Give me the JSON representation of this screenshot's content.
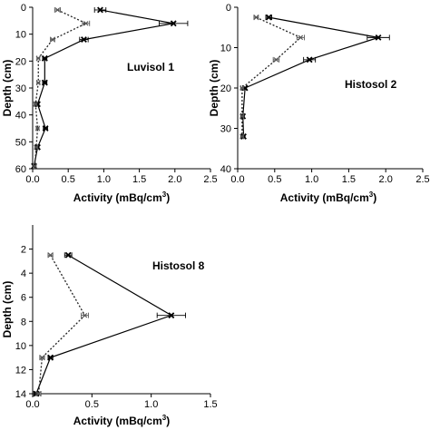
{
  "chart_data": [
    {
      "type": "line",
      "label": "Luvisol 1",
      "xlabel": "Activity (mBq/cm³)",
      "xlabel_main": "Activity (mBq/cm",
      "xlabel_sup": "3",
      "xlabel_close": ")",
      "ylabel": "Depth (cm)",
      "xlim": [
        0,
        2.5
      ],
      "ylim": [
        0,
        60
      ],
      "xticks": [
        "0.0",
        "0.5",
        "1.0",
        "1.5",
        "2.0",
        "2.5"
      ],
      "yticks": [
        "0",
        "10",
        "20",
        "30",
        "40",
        "50",
        "60"
      ],
      "series": [
        {
          "style": "solid",
          "points": [
            {
              "depth": 1,
              "activity": 0.95,
              "err": 0.08
            },
            {
              "depth": 6,
              "activity": 1.98,
              "err": 0.2
            },
            {
              "depth": 12,
              "activity": 0.72,
              "err": 0.06
            },
            {
              "depth": 19,
              "activity": 0.17,
              "err": 0.03
            },
            {
              "depth": 28,
              "activity": 0.17,
              "err": 0.03
            },
            {
              "depth": 36,
              "activity": 0.07,
              "err": 0.02
            },
            {
              "depth": 45,
              "activity": 0.18,
              "err": 0.03
            },
            {
              "depth": 52,
              "activity": 0.07,
              "err": 0.02
            },
            {
              "depth": 59,
              "activity": 0.02,
              "err": 0.02
            }
          ]
        },
        {
          "style": "dotted",
          "points": [
            {
              "depth": 1,
              "activity": 0.35,
              "err": 0.04
            },
            {
              "depth": 6,
              "activity": 0.75,
              "err": 0.05
            },
            {
              "depth": 12,
              "activity": 0.28,
              "err": 0.03
            },
            {
              "depth": 19,
              "activity": 0.08,
              "err": 0.02
            },
            {
              "depth": 28,
              "activity": 0.08,
              "err": 0.02
            },
            {
              "depth": 36,
              "activity": 0.04,
              "err": 0.02
            },
            {
              "depth": 45,
              "activity": 0.07,
              "err": 0.02
            },
            {
              "depth": 52,
              "activity": 0.05,
              "err": 0.02
            },
            {
              "depth": 59,
              "activity": 0.03,
              "err": 0.02
            }
          ]
        }
      ]
    },
    {
      "type": "line",
      "label": "Histosol 2",
      "xlabel": "Activity (mBq/cm³)",
      "xlabel_main": "Activity (mBq/cm",
      "xlabel_sup": "3",
      "xlabel_close": ")",
      "ylabel": "Depth (cm)",
      "xlim": [
        0,
        2.5
      ],
      "ylim": [
        0,
        40
      ],
      "xticks": [
        "0.0",
        "0.5",
        "1.0",
        "1.5",
        "2.0",
        "2.5"
      ],
      "yticks": [
        "0",
        "10",
        "20",
        "30",
        "40"
      ],
      "series": [
        {
          "style": "solid",
          "points": [
            {
              "depth": 2.5,
              "activity": 0.42,
              "err": 0.04
            },
            {
              "depth": 7.5,
              "activity": 1.9,
              "err": 0.15
            },
            {
              "depth": 13,
              "activity": 0.97,
              "err": 0.08
            },
            {
              "depth": 20,
              "activity": 0.1,
              "err": 0.02
            },
            {
              "depth": 27,
              "activity": 0.07,
              "err": 0.02
            },
            {
              "depth": 32,
              "activity": 0.08,
              "err": 0.02
            }
          ]
        },
        {
          "style": "dotted",
          "points": [
            {
              "depth": 2.5,
              "activity": 0.25,
              "err": 0.03
            },
            {
              "depth": 7.5,
              "activity": 0.85,
              "err": 0.05
            },
            {
              "depth": 13,
              "activity": 0.52,
              "err": 0.04
            },
            {
              "depth": 20,
              "activity": 0.06,
              "err": 0.02
            },
            {
              "depth": 27,
              "activity": 0.06,
              "err": 0.02
            },
            {
              "depth": 32,
              "activity": 0.06,
              "err": 0.02
            }
          ]
        }
      ]
    },
    {
      "type": "line",
      "label": "Histosol 8",
      "xlabel": "Activity (mBq/cm³)",
      "xlabel_main": "Activity (mBq/cm",
      "xlabel_sup": "3",
      "xlabel_close": ")",
      "ylabel": "Depth (cm)",
      "xlim": [
        0,
        1.5
      ],
      "ylim": [
        0,
        14
      ],
      "xticks": [
        "0.0",
        "0.5",
        "1.0",
        "1.5"
      ],
      "yticks": [
        "2",
        "4",
        "6",
        "8",
        "10",
        "12",
        "14"
      ],
      "series": [
        {
          "style": "solid",
          "points": [
            {
              "depth": 2.5,
              "activity": 0.3,
              "err": 0.03
            },
            {
              "depth": 7.5,
              "activity": 1.17,
              "err": 0.12
            },
            {
              "depth": 11,
              "activity": 0.15,
              "err": 0.02
            },
            {
              "depth": 14,
              "activity": 0.03,
              "err": 0.02
            }
          ]
        },
        {
          "style": "dotted",
          "points": [
            {
              "depth": 2.5,
              "activity": 0.15,
              "err": 0.02
            },
            {
              "depth": 7.5,
              "activity": 0.44,
              "err": 0.03
            },
            {
              "depth": 11,
              "activity": 0.08,
              "err": 0.02
            },
            {
              "depth": 14,
              "activity": 0.05,
              "err": 0.02
            }
          ]
        }
      ]
    }
  ]
}
